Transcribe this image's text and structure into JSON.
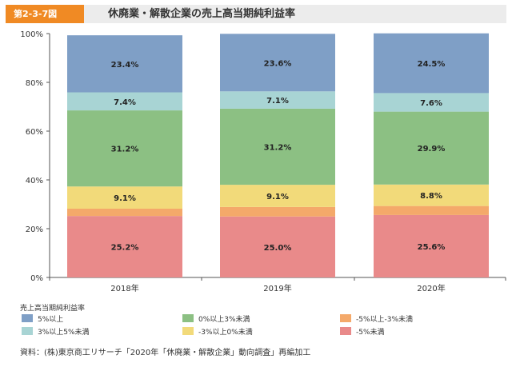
{
  "header": {
    "figure_number": "第2-3-7図",
    "title": "休廃業・解散企業の売上高当期純利益率"
  },
  "chart_data": {
    "type": "bar",
    "stacked": true,
    "percent_stacked": true,
    "categories": [
      "2018年",
      "2019年",
      "2020年"
    ],
    "series": [
      {
        "name": "-5%未満",
        "color": "#e98a8a",
        "values": [
          25.2,
          25.0,
          25.6
        ],
        "labels": [
          "25.2%",
          "25.0%",
          "25.6%"
        ]
      },
      {
        "name": "-5%以上-3%未満",
        "color": "#f4a96a",
        "values": [
          3.0,
          3.9,
          3.7
        ],
        "labels": [
          "",
          "",
          ""
        ]
      },
      {
        "name": "-3%以上0%未満",
        "color": "#f2da7a",
        "values": [
          9.1,
          9.1,
          8.8
        ],
        "labels": [
          "9.1%",
          "9.1%",
          "8.8%"
        ]
      },
      {
        "name": "0%以上3%未満",
        "color": "#8cc083",
        "values": [
          31.2,
          31.2,
          29.9
        ],
        "labels": [
          "31.2%",
          "31.2%",
          "29.9%"
        ]
      },
      {
        "name": "3%以上5%未満",
        "color": "#a8d4d4",
        "values": [
          7.4,
          7.1,
          7.6
        ],
        "labels": [
          "7.4%",
          "7.1%",
          "7.6%"
        ]
      },
      {
        "name": "5%以上",
        "color": "#7f9fc6",
        "values": [
          23.4,
          23.6,
          24.5
        ],
        "labels": [
          "23.4%",
          "23.6%",
          "24.5%"
        ]
      }
    ],
    "ylim": [
      0,
      100
    ],
    "yticks": [
      "0%",
      "20%",
      "40%",
      "60%",
      "80%",
      "100%"
    ],
    "grid": false,
    "legend": {
      "title": "売上高当期純利益率",
      "placement": "bottom",
      "items": [
        {
          "label": "5%以上",
          "color": "#7f9fc6"
        },
        {
          "label": "0%以上3%未満",
          "color": "#8cc083"
        },
        {
          "label": "-5%以上-3%未満",
          "color": "#f4a96a"
        },
        {
          "label": "3%以上5%未満",
          "color": "#a8d4d4"
        },
        {
          "label": "-3%以上0%未満",
          "color": "#f2da7a"
        },
        {
          "label": "-5%未満",
          "color": "#e98a8a"
        }
      ]
    }
  },
  "source": "資料：(株)東京商工リサーチ「2020年「休廃業・解散企業」動向調査」再編加工"
}
